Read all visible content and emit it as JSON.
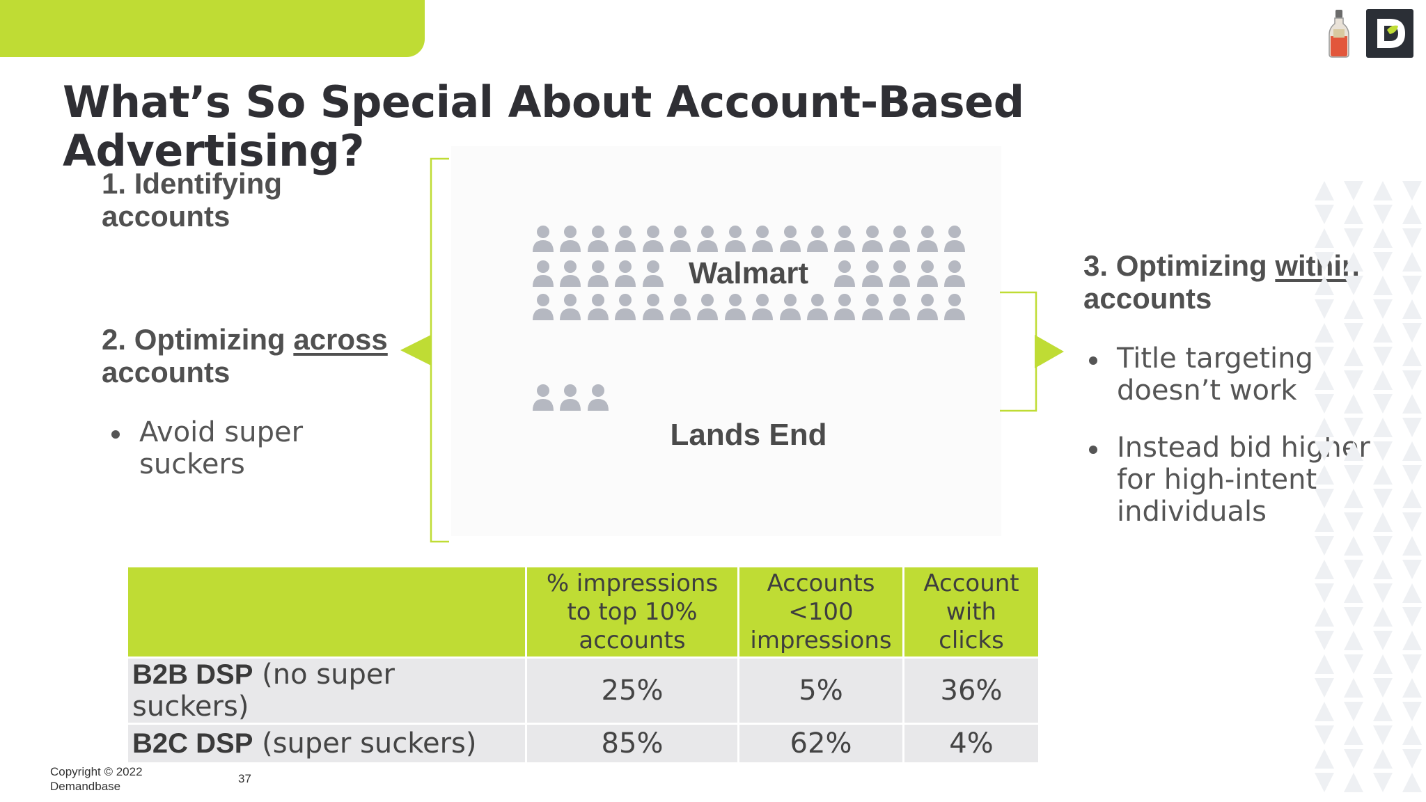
{
  "slide": {
    "title": "What’s So Special About Account-Based Advertising?",
    "step1": "1. Identifying accounts",
    "step2_prefix": "2. Optimizing ",
    "step2_underlined": "across",
    "step2_suffix": "accounts",
    "step2_bullets": [
      "Avoid super suckers"
    ],
    "step3_prefix": "3. Optimizing ",
    "step3_underlined": "within",
    "step3_suffix": "accounts",
    "step3_bullets": [
      "Title targeting doesn’t work",
      "Instead bid higher for high-intent individuals"
    ],
    "walmart_label": "Walmart",
    "landsend_label": "Lands End",
    "accent_color": "#bfdc34"
  },
  "table": {
    "headers": [
      "",
      "% impressions to top 10% accounts",
      "Accounts <100 impressions",
      "Account with clicks"
    ],
    "rows": [
      {
        "label_bold": "B2B DSP",
        "label_rest": " (no super suckers)",
        "values": [
          "25%",
          "5%",
          "36%"
        ]
      },
      {
        "label_bold": "B2C DSP",
        "label_rest": " (super suckers)",
        "values": [
          "85%",
          "62%",
          "4%"
        ]
      }
    ]
  },
  "footer": {
    "copyright": "Copyright © 2022 Demandbase",
    "page_number": "37"
  },
  "icons": {
    "people": "person-icon",
    "logo_left": "bottle-logo-icon",
    "logo_right": "demandbase-logo-icon"
  }
}
